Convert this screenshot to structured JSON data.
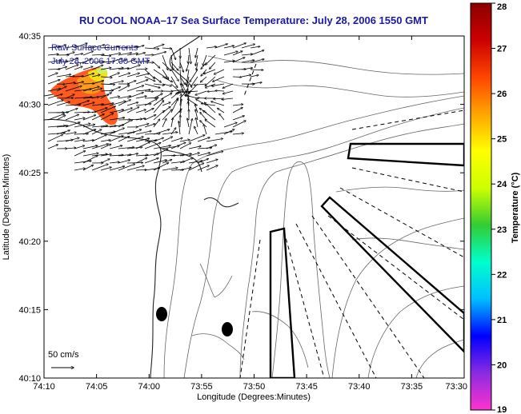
{
  "title": "RU COOL  NOAA–17  Sea Surface Temperature:  July 28, 2006 1550 GMT",
  "inset": {
    "line1": "Raw Surface Currents",
    "line2": "July 28, 2006 17:00 GMT"
  },
  "axes": {
    "xlabel": "Longitude (Degrees:Minutes)",
    "ylabel": "Latitude (Degrees:Minutes)",
    "xticks": [
      "74:10",
      "74:05",
      "74:00",
      "73:55",
      "73:50",
      "73:45",
      "73:40",
      "73:35",
      "73:30"
    ],
    "yticks": [
      "40:35",
      "40:30",
      "40:25",
      "40:20",
      "40:15",
      "40:10"
    ]
  },
  "scale": {
    "label": "50 cm/s"
  },
  "colorbar": {
    "label": "Temperature (°C)",
    "min": 19,
    "max": 28,
    "ticks": [
      "28",
      "27",
      "26",
      "25",
      "24",
      "23",
      "22",
      "21",
      "20",
      "19"
    ],
    "colors": [
      "#ff33cc",
      "#8a2be2",
      "#0000ff",
      "#00bfff",
      "#00ffcc",
      "#33cc33",
      "#ccff00",
      "#ffff00",
      "#ffa500",
      "#ff4500",
      "#cc0000",
      "#8b0000"
    ]
  },
  "chart_data": {
    "type": "map",
    "variable": "Sea Surface Temperature",
    "units": "°C",
    "x_range": [
      "74:10",
      "73:30"
    ],
    "y_range": [
      "40:10",
      "40:35"
    ],
    "warm_patch_temperature_range": [
      25,
      26
    ]
  }
}
